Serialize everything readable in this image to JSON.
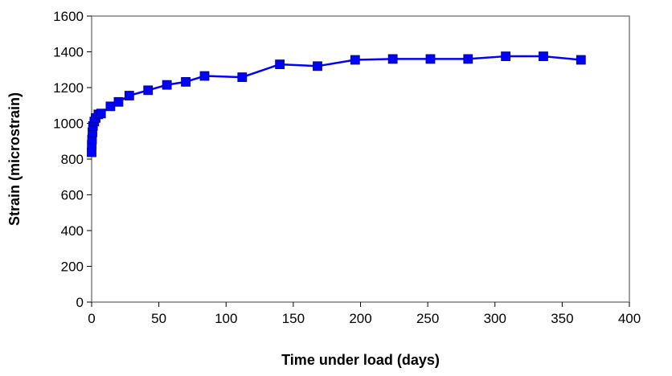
{
  "chart_data": {
    "type": "line",
    "title": "",
    "xlabel": "Time under load (days)",
    "ylabel": "Strain (microstrain)",
    "xlim": [
      0,
      400
    ],
    "ylim": [
      0,
      1600
    ],
    "x_ticks": [
      0,
      50,
      100,
      150,
      200,
      250,
      300,
      350,
      400
    ],
    "y_ticks": [
      0,
      200,
      400,
      600,
      800,
      1000,
      1200,
      1400,
      1600
    ],
    "x_tick_labels": [
      "0",
      "50",
      "100",
      "150",
      "200",
      "250",
      "300",
      "350",
      "400"
    ],
    "y_tick_labels": [
      "0",
      "200",
      "400",
      "600",
      "800",
      "1000",
      "1200",
      "1400",
      "1600"
    ],
    "grid": false,
    "legend": false,
    "line_color": "#0000FF",
    "marker": "square",
    "series": [
      {
        "x": [
          0,
          0.1,
          0.3,
          0.6,
          1,
          2,
          3,
          5,
          7,
          14,
          20,
          28,
          42,
          56,
          70,
          84,
          112,
          140,
          168,
          196,
          224,
          252,
          280,
          308,
          336,
          364
        ],
        "y": [
          838,
          880,
          910,
          950,
          985,
          1010,
          1030,
          1050,
          1055,
          1095,
          1120,
          1155,
          1185,
          1215,
          1232,
          1265,
          1258,
          1330,
          1320,
          1355,
          1360,
          1360,
          1360,
          1375,
          1375,
          1355
        ]
      }
    ]
  }
}
